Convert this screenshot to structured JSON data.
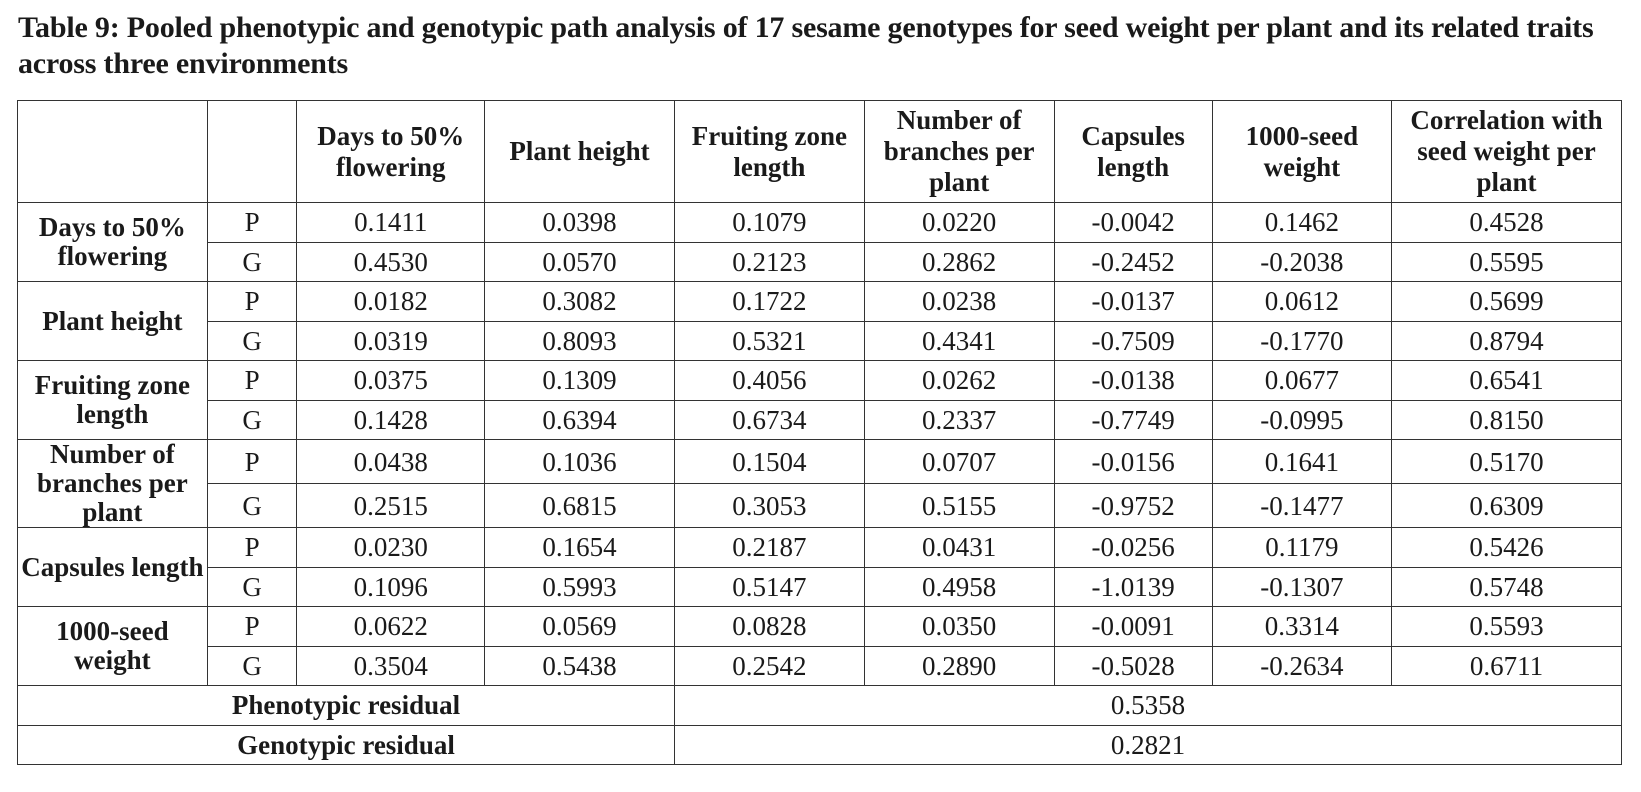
{
  "caption": "Table 9: Pooled phenotypic and genotypic path analysis of 17 sesame genotypes for seed weight per plant and its related traits across three environments",
  "headers": [
    "Days to 50% flowering",
    "Plant height",
    "Fruiting zone length",
    "Number of branches per plant",
    "Capsules length",
    "1000-seed weight",
    "Correlation with seed weight per plant"
  ],
  "traits": [
    {
      "name": "Days to 50% flowering",
      "P": [
        "0.1411",
        "0.0398",
        "0.1079",
        "0.0220",
        "-0.0042",
        "0.1462",
        "0.4528"
      ],
      "G": [
        "0.4530",
        "0.0570",
        "0.2123",
        "0.2862",
        "-0.2452",
        "-0.2038",
        "0.5595"
      ]
    },
    {
      "name": "Plant height",
      "P": [
        "0.0182",
        "0.3082",
        "0.1722",
        "0.0238",
        "-0.0137",
        "0.0612",
        "0.5699"
      ],
      "G": [
        "0.0319",
        "0.8093",
        "0.5321",
        "0.4341",
        "-0.7509",
        "-0.1770",
        "0.8794"
      ]
    },
    {
      "name": "Fruiting zone length",
      "P": [
        "0.0375",
        "0.1309",
        "0.4056",
        "0.0262",
        "-0.0138",
        "0.0677",
        "0.6541"
      ],
      "G": [
        "0.1428",
        "0.6394",
        "0.6734",
        "0.2337",
        "-0.7749",
        "-0.0995",
        "0.8150"
      ]
    },
    {
      "name": "Number of branches per plant",
      "P": [
        "0.0438",
        "0.1036",
        "0.1504",
        "0.0707",
        "-0.0156",
        "0.1641",
        "0.5170"
      ],
      "G": [
        "0.2515",
        "0.6815",
        "0.3053",
        "0.5155",
        "-0.9752",
        "-0.1477",
        "0.6309"
      ]
    },
    {
      "name": "Capsules length",
      "P": [
        "0.0230",
        "0.1654",
        "0.2187",
        "0.0431",
        "-0.0256",
        "0.1179",
        "0.5426"
      ],
      "G": [
        "0.1096",
        "0.5993",
        "0.5147",
        "0.4958",
        "-1.0139",
        "-0.1307",
        "0.5748"
      ]
    },
    {
      "name": "1000-seed weight",
      "P": [
        "0.0622",
        "0.0569",
        "0.0828",
        "0.0350",
        "-0.0091",
        "0.3314",
        "0.5593"
      ],
      "G": [
        "0.3504",
        "0.5438",
        "0.2542",
        "0.2890",
        "-0.5028",
        "-0.2634",
        "0.6711"
      ]
    }
  ],
  "type_labels": {
    "P": "P",
    "G": "G"
  },
  "residuals": [
    {
      "label": "Phenotypic  residual",
      "value": "0.5358"
    },
    {
      "label": "Genotypic residual",
      "value": "0.2821"
    }
  ]
}
